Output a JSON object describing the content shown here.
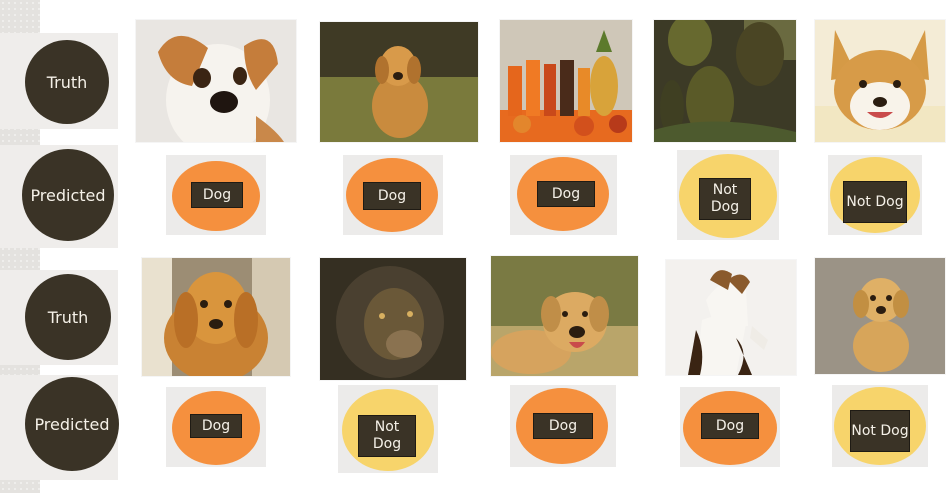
{
  "row_labels": {
    "truth": "Truth",
    "predicted": "Predicted"
  },
  "rows": [
    {
      "images": [
        {
          "icon": "jack-russell-puppy-photo"
        },
        {
          "icon": "golden-retriever-grass-photo"
        },
        {
          "icon": "fruit-juices-photo"
        },
        {
          "icon": "jackfruit-tree-photo"
        },
        {
          "icon": "corgi-photo"
        }
      ],
      "predictions": [
        {
          "text": "Dog",
          "color": "#f5903e"
        },
        {
          "text": "Dog",
          "color": "#f5903e"
        },
        {
          "text": "Dog",
          "color": "#f5903e"
        },
        {
          "text": "Not Dog",
          "color": "#f7d46b"
        },
        {
          "text": "Not Dog",
          "color": "#f7d46b"
        }
      ]
    },
    {
      "images": [
        {
          "icon": "golden-retriever-portrait-photo"
        },
        {
          "icon": "lion-photo"
        },
        {
          "icon": "labrador-photo"
        },
        {
          "icon": "jack-russell-standing-photo"
        },
        {
          "icon": "golden-puppy-sitting-photo"
        }
      ],
      "predictions": [
        {
          "text": "Dog",
          "color": "#f5903e"
        },
        {
          "text": "Not Dog",
          "color": "#f7d46b"
        },
        {
          "text": "Dog",
          "color": "#f5903e"
        },
        {
          "text": "Dog",
          "color": "#f5903e"
        },
        {
          "text": "Not Dog",
          "color": "#f7d46b"
        }
      ]
    }
  ],
  "colors": {
    "dark": "#3a3326",
    "dog_oval": "#f5903e",
    "not_dog_oval": "#f7d46b"
  }
}
